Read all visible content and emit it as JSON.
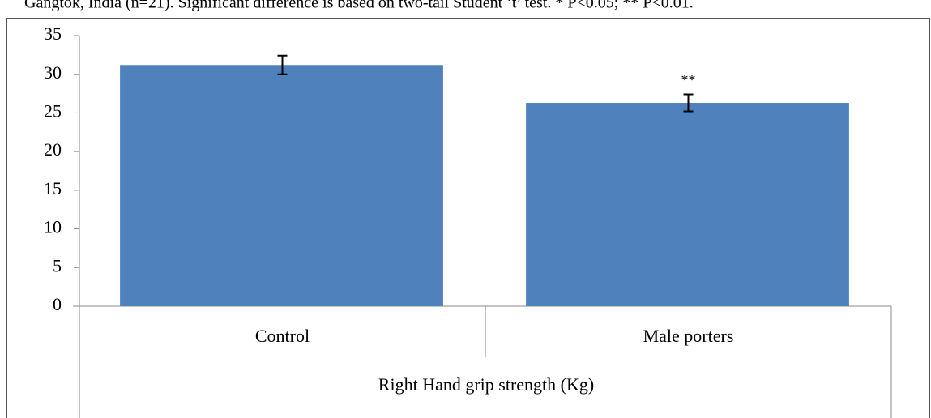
{
  "caption": "Gangtok, India (n=21). Significant difference is based on two-tail Student ‘t’ test. * P<0.05; ** P<0.01.",
  "chart_data": {
    "type": "bar",
    "xlabel": "Right Hand grip strength (Kg)",
    "categories": [
      "Control",
      "Male porters"
    ],
    "values": [
      31.2,
      26.3
    ],
    "errors": [
      1.2,
      1.1
    ],
    "annotations": [
      null,
      "**"
    ],
    "color": "#4f81bd",
    "ylim": [
      0,
      35
    ],
    "yticks": [
      0,
      5,
      10,
      15,
      20,
      25,
      30,
      35
    ],
    "grid": false
  }
}
